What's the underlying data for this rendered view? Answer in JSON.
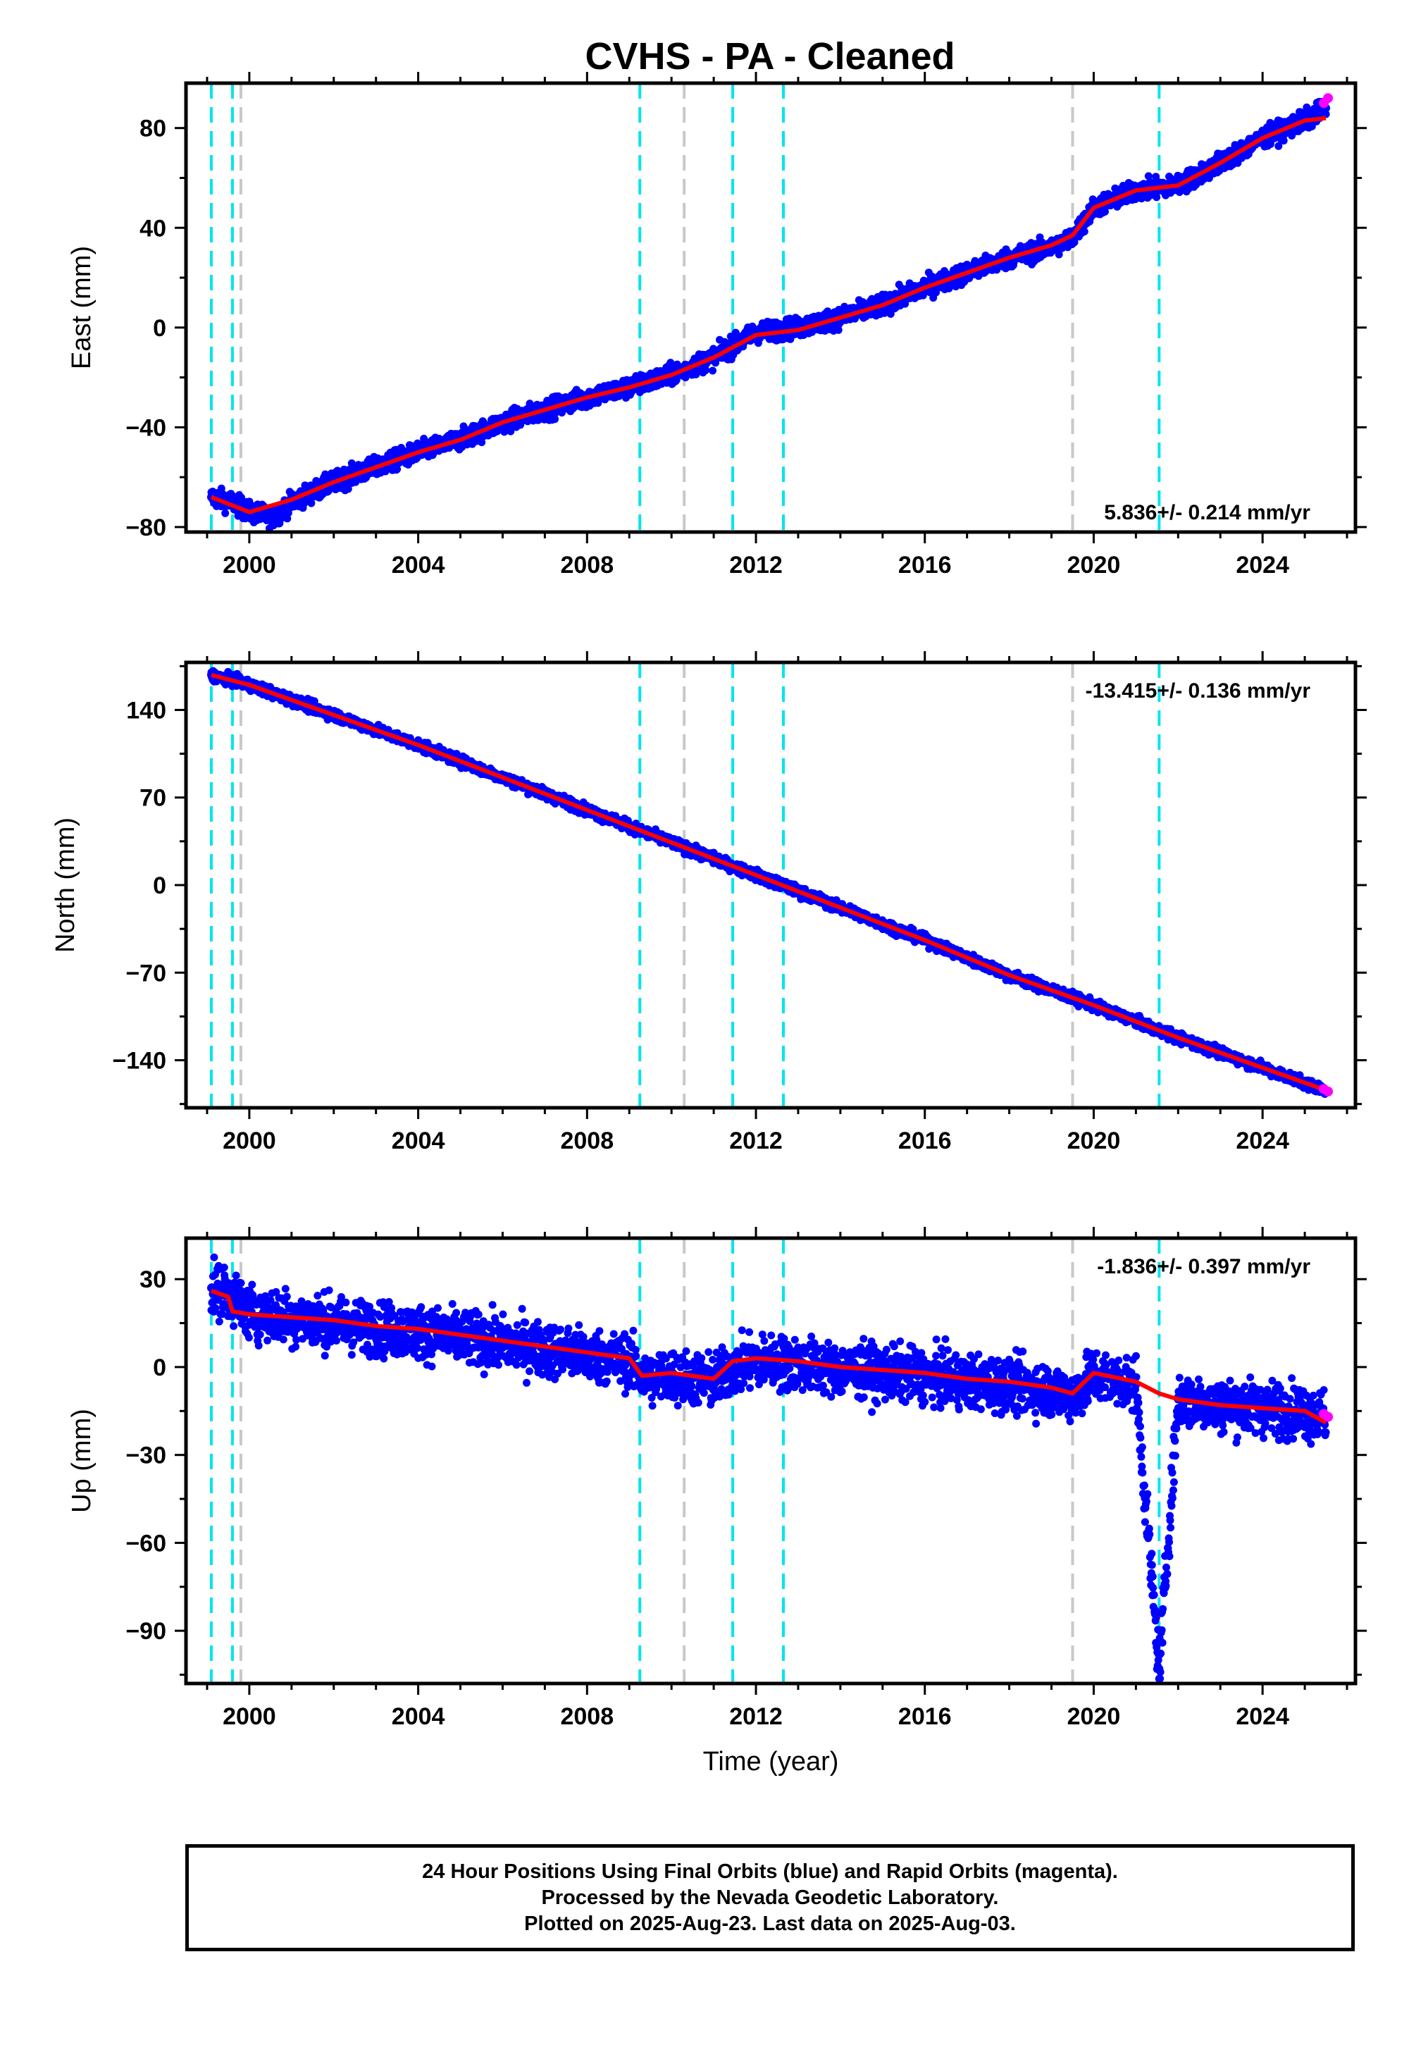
{
  "title": "CVHS  - PA - Cleaned",
  "caption": {
    "line1": "24 Hour Positions Using Final Orbits (blue) and Rapid Orbits (magenta).",
    "line2": "Processed by the Nevada Geodetic Laboratory.",
    "line3": "Plotted on 2025-Aug-23. Last data on 2025-Aug-03."
  },
  "colors": {
    "final_orbits": "#0000ff",
    "rapid_orbits": "#ff00ff",
    "model_fit": "#ff0000",
    "cyan_event": "#00e5ee",
    "gray_event": "#c8c8c8"
  },
  "chart_data": [
    {
      "type": "scatter",
      "component": "East",
      "ylabel": "East (mm)",
      "xlabel": "",
      "rate_label": "5.836+/- 0.214 mm/yr",
      "xlim": [
        1998.5,
        2026.2
      ],
      "ylim": [
        -82,
        98
      ],
      "xticks": [
        2000,
        2004,
        2008,
        2012,
        2016,
        2020,
        2024
      ],
      "yticks": [
        -80,
        -40,
        0,
        40,
        80
      ],
      "grid": false,
      "events_cyan": [
        1999.1,
        1999.6,
        2009.25,
        2011.45,
        2012.65,
        2021.55
      ],
      "events_gray": [
        1999.8,
        2010.3,
        2019.5
      ],
      "series": [
        {
          "name": "Final Orbits (blue)",
          "x": [
            1999.1,
            1999.6,
            2000.0,
            2000.6,
            2001.0,
            2002.0,
            2003.0,
            2004.0,
            2005.0,
            2006.0,
            2007.0,
            2008.0,
            2009.0,
            2010.0,
            2011.0,
            2012.0,
            2013.0,
            2014.0,
            2015.0,
            2016.0,
            2017.0,
            2018.0,
            2019.0,
            2019.5,
            2020.0,
            2021.0,
            2022.0,
            2023.0,
            2024.0,
            2025.0,
            2025.5
          ],
          "y": [
            -68,
            -70,
            -74,
            -76,
            -70,
            -62,
            -56,
            -50,
            -45,
            -38,
            -33,
            -28,
            -24,
            -19,
            -12,
            -2,
            0,
            4,
            9,
            16,
            22,
            28,
            32,
            36,
            48,
            55,
            57,
            66,
            76,
            83,
            88
          ]
        },
        {
          "name": "Rapid Orbits (magenta)",
          "x": [
            2025.45,
            2025.55
          ],
          "y": [
            90,
            92
          ]
        },
        {
          "name": "Model fit (red)",
          "x": [
            1999.1,
            2000.0,
            2001.0,
            2002.0,
            2003.0,
            2004.0,
            2005.0,
            2006.0,
            2007.0,
            2008.0,
            2009.0,
            2010.0,
            2011.0,
            2012.0,
            2013.0,
            2014.0,
            2015.0,
            2016.0,
            2017.0,
            2018.0,
            2019.0,
            2019.5,
            2020.0,
            2021.0,
            2022.0,
            2023.0,
            2024.0,
            2025.0,
            2025.5
          ],
          "y": [
            -68,
            -74,
            -69,
            -62,
            -56,
            -50,
            -45,
            -38,
            -33,
            -28,
            -24,
            -19,
            -12,
            -3,
            -1,
            4,
            9,
            16,
            22,
            28,
            33,
            37,
            48,
            55,
            57,
            66,
            76,
            83,
            84
          ]
        }
      ]
    },
    {
      "type": "scatter",
      "component": "North",
      "ylabel": "North (mm)",
      "xlabel": "",
      "rate_label": "-13.415+/- 0.136 mm/yr",
      "xlim": [
        1998.5,
        2026.2
      ],
      "ylim": [
        -178,
        178
      ],
      "xticks": [
        2000,
        2004,
        2008,
        2012,
        2016,
        2020,
        2024
      ],
      "yticks": [
        -140,
        -70,
        0,
        70,
        140
      ],
      "grid": false,
      "events_cyan": [
        1999.1,
        1999.6,
        2009.25,
        2011.45,
        2012.65,
        2021.55
      ],
      "events_gray": [
        1999.8,
        2010.3,
        2019.5
      ],
      "series": [
        {
          "name": "Final Orbits (blue)",
          "x": [
            1999.1,
            2000.0,
            2002.0,
            2004.0,
            2006.0,
            2008.0,
            2010.0,
            2012.0,
            2014.0,
            2016.0,
            2018.0,
            2020.0,
            2022.0,
            2024.0,
            2025.5
          ],
          "y": [
            168,
            160,
            136,
            112,
            86,
            60,
            34,
            8,
            -18,
            -44,
            -72,
            -96,
            -122,
            -146,
            -164
          ]
        },
        {
          "name": "Rapid Orbits (magenta)",
          "x": [
            2025.45,
            2025.55
          ],
          "y": [
            -163,
            -165
          ]
        },
        {
          "name": "Model fit (red)",
          "x": [
            1999.1,
            2000.0,
            2002.0,
            2004.0,
            2006.0,
            2008.0,
            2010.0,
            2012.0,
            2014.0,
            2016.0,
            2018.0,
            2020.0,
            2022.0,
            2024.0,
            2025.5
          ],
          "y": [
            168,
            160,
            136,
            112,
            86,
            60,
            34,
            8,
            -18,
            -44,
            -72,
            -96,
            -122,
            -146,
            -164
          ]
        }
      ]
    },
    {
      "type": "scatter",
      "component": "Up",
      "ylabel": "Up (mm)",
      "xlabel": "Time (year)",
      "rate_label": "-1.836+/- 0.397 mm/yr",
      "xlim": [
        1998.5,
        2026.2
      ],
      "ylim": [
        -108,
        44
      ],
      "xticks": [
        2000,
        2004,
        2008,
        2012,
        2016,
        2020,
        2024
      ],
      "yticks": [
        -90,
        -60,
        -30,
        0,
        30
      ],
      "grid": false,
      "events_cyan": [
        1999.1,
        1999.6,
        2009.25,
        2011.45,
        2012.65,
        2021.55
      ],
      "events_gray": [
        1999.8,
        2010.3,
        2019.5
      ],
      "series": [
        {
          "name": "Final Orbits (blue)",
          "x": [
            1999.1,
            1999.6,
            2000.0,
            2001.0,
            2002.0,
            2003.0,
            2004.0,
            2005.0,
            2006.0,
            2007.0,
            2008.0,
            2009.0,
            2009.3,
            2010.0,
            2011.0,
            2011.5,
            2012.0,
            2013.0,
            2014.0,
            2015.0,
            2016.0,
            2017.0,
            2018.0,
            2019.0,
            2019.5,
            2020.0,
            2021.0,
            2021.55,
            2022.0,
            2023.0,
            2024.0,
            2025.0,
            2025.5
          ],
          "y": [
            27,
            24,
            19,
            17,
            15,
            13,
            12,
            10,
            8,
            6,
            4,
            2,
            -4,
            -3,
            -5,
            0,
            2,
            1,
            -1,
            -2,
            -3,
            -5,
            -6,
            -8,
            -10,
            -3,
            -6,
            -103,
            -11,
            -13,
            -14,
            -15,
            -17
          ]
        },
        {
          "name": "Rapid Orbits (magenta)",
          "x": [
            2025.45,
            2025.55
          ],
          "y": [
            -16,
            -17
          ]
        },
        {
          "name": "Model fit (red)",
          "x": [
            1999.1,
            1999.5,
            1999.6,
            2000.0,
            2001.0,
            2002.0,
            2003.0,
            2004.0,
            2005.0,
            2006.0,
            2007.0,
            2008.0,
            2009.0,
            2009.3,
            2010.0,
            2011.0,
            2011.45,
            2012.0,
            2013.0,
            2014.0,
            2015.0,
            2016.0,
            2017.0,
            2018.0,
            2019.0,
            2019.5,
            2020.0,
            2021.0,
            2021.55,
            2022.0,
            2023.0,
            2024.0,
            2025.0,
            2025.5
          ],
          "y": [
            26,
            24,
            19,
            18,
            17,
            16,
            14,
            13,
            11,
            9,
            7,
            5,
            3,
            -3,
            -2,
            -4,
            2,
            3,
            2,
            0,
            -1,
            -2,
            -4,
            -5,
            -7,
            -9,
            -2,
            -5,
            -9,
            -11,
            -13,
            -14,
            -15,
            -19
          ]
        }
      ]
    }
  ]
}
